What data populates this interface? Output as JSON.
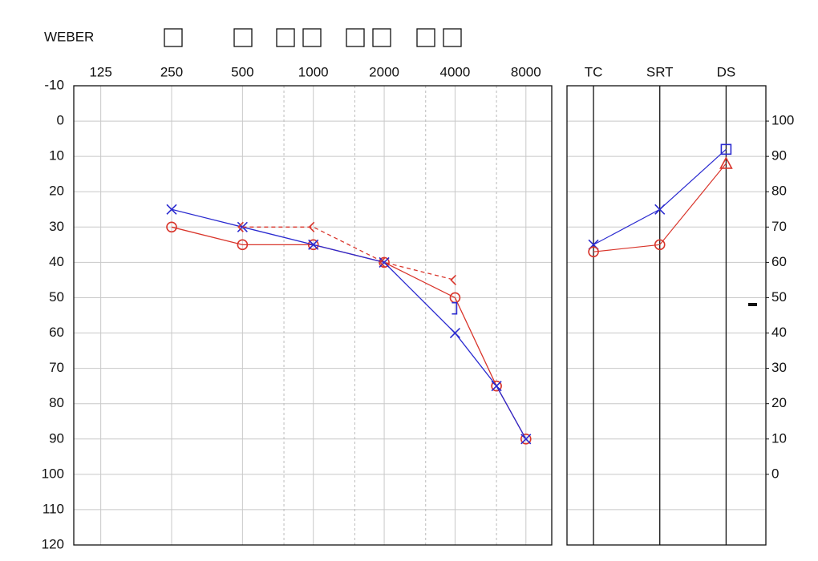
{
  "chart_data": {
    "type": "audiogram",
    "weber_label": "WEBER",
    "xlog": true,
    "xlim": [
      96,
      10300
    ],
    "xticks": [
      125,
      250,
      500,
      1000,
      2000,
      4000,
      8000
    ],
    "xminorticks": [
      750,
      1500,
      3000,
      6000
    ],
    "ylim": [
      -10,
      120
    ],
    "yinvert": true,
    "yticks": [
      -10,
      0,
      10,
      20,
      30,
      40,
      50,
      60,
      70,
      80,
      90,
      100,
      110,
      120
    ],
    "grid": true,
    "series": [
      {
        "color": "#d9352b",
        "marker": "circle",
        "line": "solid",
        "x": [
          250,
          500,
          1000,
          2000,
          4000,
          6000,
          8000
        ],
        "values": [
          30,
          35,
          35,
          40,
          50,
          75,
          90
        ]
      },
      {
        "color": "#2a2ad0",
        "marker": "cross",
        "line": "solid",
        "x": [
          250,
          500,
          1000,
          2000,
          4000,
          6000,
          8000
        ],
        "values": [
          25,
          30,
          35,
          40,
          60,
          75,
          90
        ]
      },
      {
        "color": "#d9352b",
        "marker": "less",
        "line": "dashed",
        "x": [
          500,
          1000,
          2000,
          4000
        ],
        "values": [
          30,
          30,
          40,
          45
        ]
      },
      {
        "color": "#2a2ad0",
        "marker": "bracket",
        "line": "none",
        "x": [
          4000
        ],
        "values": [
          53
        ]
      }
    ],
    "speech": {
      "categories": [
        "TC",
        "SRT",
        "DS"
      ],
      "axes": [
        "y",
        "y",
        "y2"
      ],
      "y2lim": [
        -20,
        110
      ],
      "y2ticks": [
        0,
        10,
        20,
        30,
        40,
        50,
        60,
        70,
        80,
        90,
        100
      ],
      "series": [
        {
          "color": "#2a2ad0",
          "markers": [
            "cross",
            "cross",
            "square"
          ],
          "values": [
            35,
            25,
            92
          ]
        },
        {
          "color": "#d9352b",
          "markers": [
            "circle",
            "circle",
            "triangle"
          ],
          "values": [
            37,
            35,
            88
          ]
        }
      ]
    }
  }
}
